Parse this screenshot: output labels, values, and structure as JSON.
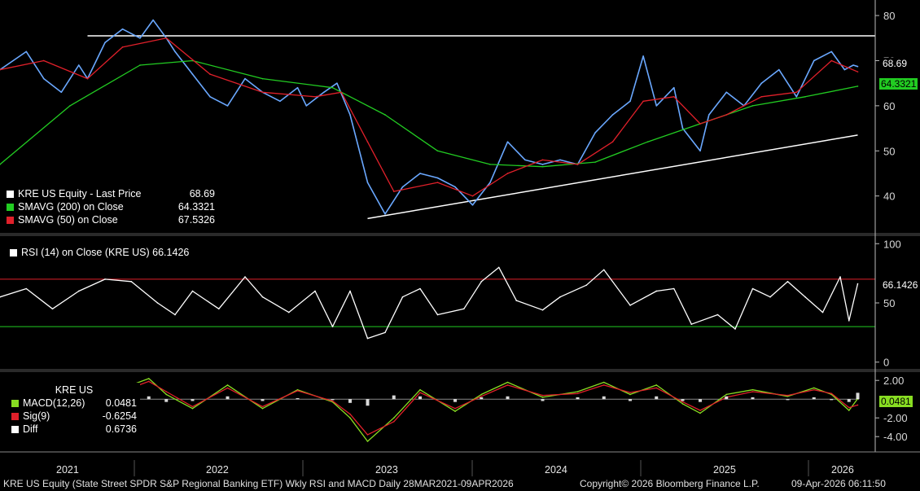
{
  "chart_data": [
    {
      "type": "line",
      "panel": "price",
      "title": "KRE US Equity - Last Price 68.69",
      "yticks": [
        40,
        50,
        60,
        70,
        80
      ],
      "ylim": [
        32,
        82
      ],
      "x_labels": [
        "2021",
        "2022",
        "2023",
        "2024",
        "2025",
        "2026"
      ],
      "series": [
        {
          "name": "KRE US Equity - Last Price",
          "color": "#ffffff",
          "last": 68.69,
          "points": [
            [
              0,
              68
            ],
            [
              0.03,
              72
            ],
            [
              0.05,
              66
            ],
            [
              0.07,
              63
            ],
            [
              0.09,
              69
            ],
            [
              0.1,
              66
            ],
            [
              0.12,
              74
            ],
            [
              0.14,
              77
            ],
            [
              0.16,
              75
            ],
            [
              0.175,
              79
            ],
            [
              0.19,
              75
            ],
            [
              0.2,
              72
            ],
            [
              0.22,
              67
            ],
            [
              0.24,
              62
            ],
            [
              0.26,
              60
            ],
            [
              0.28,
              66
            ],
            [
              0.3,
              63
            ],
            [
              0.32,
              61
            ],
            [
              0.34,
              64
            ],
            [
              0.35,
              60
            ],
            [
              0.37,
              63
            ],
            [
              0.385,
              65
            ],
            [
              0.4,
              58
            ],
            [
              0.42,
              43
            ],
            [
              0.44,
              36
            ],
            [
              0.46,
              42
            ],
            [
              0.48,
              45
            ],
            [
              0.5,
              44
            ],
            [
              0.52,
              42
            ],
            [
              0.54,
              38
            ],
            [
              0.56,
              43
            ],
            [
              0.58,
              52
            ],
            [
              0.6,
              48
            ],
            [
              0.62,
              47
            ],
            [
              0.64,
              48
            ],
            [
              0.66,
              47
            ],
            [
              0.68,
              54
            ],
            [
              0.7,
              58
            ],
            [
              0.72,
              61
            ],
            [
              0.735,
              71
            ],
            [
              0.75,
              60
            ],
            [
              0.77,
              64
            ],
            [
              0.78,
              55
            ],
            [
              0.8,
              50
            ],
            [
              0.81,
              58
            ],
            [
              0.83,
              63
            ],
            [
              0.85,
              60
            ],
            [
              0.87,
              65
            ],
            [
              0.89,
              68
            ],
            [
              0.91,
              62
            ],
            [
              0.93,
              70
            ],
            [
              0.95,
              72
            ],
            [
              0.965,
              68
            ],
            [
              0.975,
              69
            ],
            [
              0.98,
              68.69
            ]
          ]
        },
        {
          "name": "SMAVG (200) on Close",
          "color": "#22cc22",
          "last": 64.3321,
          "points": [
            [
              0,
              47
            ],
            [
              0.08,
              60
            ],
            [
              0.16,
              69
            ],
            [
              0.22,
              70
            ],
            [
              0.3,
              66
            ],
            [
              0.38,
              64
            ],
            [
              0.44,
              58
            ],
            [
              0.5,
              50
            ],
            [
              0.56,
              47
            ],
            [
              0.62,
              46.5
            ],
            [
              0.68,
              47.5
            ],
            [
              0.74,
              52
            ],
            [
              0.8,
              56
            ],
            [
              0.86,
              60
            ],
            [
              0.92,
              62
            ],
            [
              0.98,
              64.33
            ]
          ]
        },
        {
          "name": "SMAVG (50) on Close",
          "color": "#e0202a",
          "last": 67.5326,
          "points": [
            [
              0,
              68
            ],
            [
              0.05,
              70
            ],
            [
              0.1,
              66
            ],
            [
              0.14,
              73
            ],
            [
              0.19,
              75
            ],
            [
              0.24,
              67
            ],
            [
              0.3,
              63
            ],
            [
              0.36,
              62
            ],
            [
              0.39,
              63
            ],
            [
              0.42,
              52
            ],
            [
              0.45,
              41
            ],
            [
              0.5,
              43
            ],
            [
              0.54,
              40
            ],
            [
              0.58,
              45
            ],
            [
              0.62,
              48
            ],
            [
              0.66,
              47
            ],
            [
              0.7,
              52
            ],
            [
              0.735,
              61
            ],
            [
              0.77,
              62
            ],
            [
              0.8,
              56
            ],
            [
              0.83,
              58
            ],
            [
              0.87,
              62
            ],
            [
              0.91,
              63
            ],
            [
              0.95,
              70
            ],
            [
              0.98,
              67.53
            ]
          ]
        }
      ],
      "trendlines": [
        {
          "name": "resistance",
          "color": "#ffffff",
          "from": [
            0.1,
            75.5
          ],
          "to": [
            1.0,
            75.5
          ]
        },
        {
          "name": "support",
          "color": "#ffffff",
          "from": [
            0.42,
            35
          ],
          "to": [
            0.98,
            53.5
          ]
        }
      ]
    },
    {
      "type": "line",
      "panel": "rsi",
      "title": "RSI (14) on Close (KRE US) 66.1426",
      "yticks": [
        0,
        50,
        100
      ],
      "ylim": [
        -5,
        105
      ],
      "levels": [
        {
          "value": 70,
          "color": "#e0202a"
        },
        {
          "value": 30,
          "color": "#22cc22"
        }
      ],
      "series": [
        {
          "name": "RSI (14) on Close (KRE US)",
          "color": "#ffffff",
          "last": 66.1426,
          "points": [
            [
              0,
              55
            ],
            [
              0.03,
              62
            ],
            [
              0.06,
              45
            ],
            [
              0.09,
              60
            ],
            [
              0.12,
              70
            ],
            [
              0.15,
              68
            ],
            [
              0.18,
              50
            ],
            [
              0.2,
              40
            ],
            [
              0.22,
              60
            ],
            [
              0.25,
              45
            ],
            [
              0.28,
              72
            ],
            [
              0.3,
              55
            ],
            [
              0.33,
              42
            ],
            [
              0.36,
              60
            ],
            [
              0.38,
              30
            ],
            [
              0.4,
              60
            ],
            [
              0.42,
              20
            ],
            [
              0.44,
              25
            ],
            [
              0.46,
              55
            ],
            [
              0.48,
              62
            ],
            [
              0.5,
              40
            ],
            [
              0.53,
              45
            ],
            [
              0.55,
              68
            ],
            [
              0.57,
              80
            ],
            [
              0.59,
              52
            ],
            [
              0.62,
              44
            ],
            [
              0.64,
              55
            ],
            [
              0.67,
              65
            ],
            [
              0.69,
              78
            ],
            [
              0.72,
              48
            ],
            [
              0.75,
              60
            ],
            [
              0.77,
              62
            ],
            [
              0.79,
              32
            ],
            [
              0.82,
              40
            ],
            [
              0.84,
              28
            ],
            [
              0.86,
              62
            ],
            [
              0.88,
              55
            ],
            [
              0.9,
              68
            ],
            [
              0.92,
              55
            ],
            [
              0.94,
              42
            ],
            [
              0.96,
              72
            ],
            [
              0.97,
              35
            ],
            [
              0.98,
              66.14
            ]
          ]
        }
      ]
    },
    {
      "type": "line",
      "panel": "macd",
      "title": "KRE US",
      "yticks": [
        2.0,
        -2.0,
        -4.0
      ],
      "ylim": [
        -5.2,
        2.8
      ],
      "series": [
        {
          "name": "MACD(12,26)",
          "color": "#88dd22",
          "last": 0.0481,
          "points": [
            [
              0.15,
              1.5
            ],
            [
              0.17,
              2.2
            ],
            [
              0.19,
              0.5
            ],
            [
              0.22,
              -1
            ],
            [
              0.26,
              1.5
            ],
            [
              0.3,
              -1
            ],
            [
              0.34,
              1
            ],
            [
              0.38,
              -0.3
            ],
            [
              0.4,
              -2
            ],
            [
              0.42,
              -4.5
            ],
            [
              0.45,
              -2
            ],
            [
              0.48,
              1
            ],
            [
              0.52,
              -1.3
            ],
            [
              0.55,
              0.5
            ],
            [
              0.58,
              1.8
            ],
            [
              0.62,
              0.2
            ],
            [
              0.66,
              0.8
            ],
            [
              0.69,
              1.8
            ],
            [
              0.72,
              0.5
            ],
            [
              0.75,
              1.5
            ],
            [
              0.78,
              -0.5
            ],
            [
              0.8,
              -1.5
            ],
            [
              0.83,
              0.5
            ],
            [
              0.86,
              1
            ],
            [
              0.9,
              0.3
            ],
            [
              0.93,
              1.2
            ],
            [
              0.95,
              0.5
            ],
            [
              0.97,
              -1.2
            ],
            [
              0.98,
              0.05
            ]
          ]
        },
        {
          "name": "Sig(9)",
          "color": "#e0202a",
          "last": -0.6254,
          "points": [
            [
              0.15,
              1.2
            ],
            [
              0.17,
              1.9
            ],
            [
              0.19,
              0.8
            ],
            [
              0.22,
              -0.8
            ],
            [
              0.26,
              1.2
            ],
            [
              0.3,
              -0.8
            ],
            [
              0.34,
              0.9
            ],
            [
              0.38,
              -0.2
            ],
            [
              0.4,
              -1.6
            ],
            [
              0.42,
              -3.8
            ],
            [
              0.45,
              -2.4
            ],
            [
              0.48,
              0.7
            ],
            [
              0.52,
              -1
            ],
            [
              0.55,
              0.3
            ],
            [
              0.58,
              1.5
            ],
            [
              0.62,
              0.4
            ],
            [
              0.66,
              0.6
            ],
            [
              0.69,
              1.5
            ],
            [
              0.72,
              0.7
            ],
            [
              0.75,
              1.2
            ],
            [
              0.78,
              -0.3
            ],
            [
              0.8,
              -1.2
            ],
            [
              0.83,
              0.2
            ],
            [
              0.86,
              0.8
            ],
            [
              0.9,
              0.4
            ],
            [
              0.93,
              1
            ],
            [
              0.95,
              0.6
            ],
            [
              0.97,
              -0.9
            ],
            [
              0.98,
              -0.63
            ]
          ]
        }
      ],
      "histogram": {
        "name": "Diff",
        "color": "#ffffff",
        "last": 0.6736
      },
      "legend": [
        {
          "name": "MACD(12,26)",
          "value": "0.0481",
          "color": "#88dd22"
        },
        {
          "name": "Sig(9)",
          "value": "-0.6254",
          "color": "#e0202a"
        },
        {
          "name": "Diff",
          "value": "0.6736",
          "color": "#ffffff"
        }
      ]
    }
  ],
  "legend_price": [
    {
      "name": "KRE US Equity - Last Price",
      "value": "68.69",
      "color": "#ffffff"
    },
    {
      "name": "SMAVG (200)  on Close",
      "value": "64.3321",
      "color": "#22cc22"
    },
    {
      "name": "SMAVG (50)  on Close",
      "value": "67.5326",
      "color": "#e0202a"
    }
  ],
  "legend_rsi": {
    "label": "RSI (14)  on Close (KRE US) 66.1426"
  },
  "legend_macd_title": "KRE US",
  "tags": {
    "price_last": "68.69",
    "price_sma200": "64.3321",
    "rsi_last": "66.1426",
    "macd_last": "0.0481"
  },
  "axis_labels": {
    "price": [
      "80",
      "70",
      "60",
      "50",
      "40"
    ],
    "rsi": [
      "100",
      "50",
      "0"
    ],
    "macd": [
      "2.00",
      "-2.00",
      "-4.00"
    ]
  },
  "x_labels": [
    "2021",
    "2022",
    "2023",
    "2024",
    "2025",
    "2026"
  ],
  "footer": {
    "left": "KRE US Equity (State Street SPDR S&P Regional Banking ETF) Wkly RSI and MACD Daily 28MAR2021-09APR2026",
    "center": "Copyright© 2026 Bloomberg Finance L.P.",
    "right": "09-Apr-2026 06:11:50"
  },
  "colors": {
    "background": "#000000",
    "price_line": "#6aa8ff",
    "sma200": "#22cc22",
    "sma50": "#e0202a"
  }
}
